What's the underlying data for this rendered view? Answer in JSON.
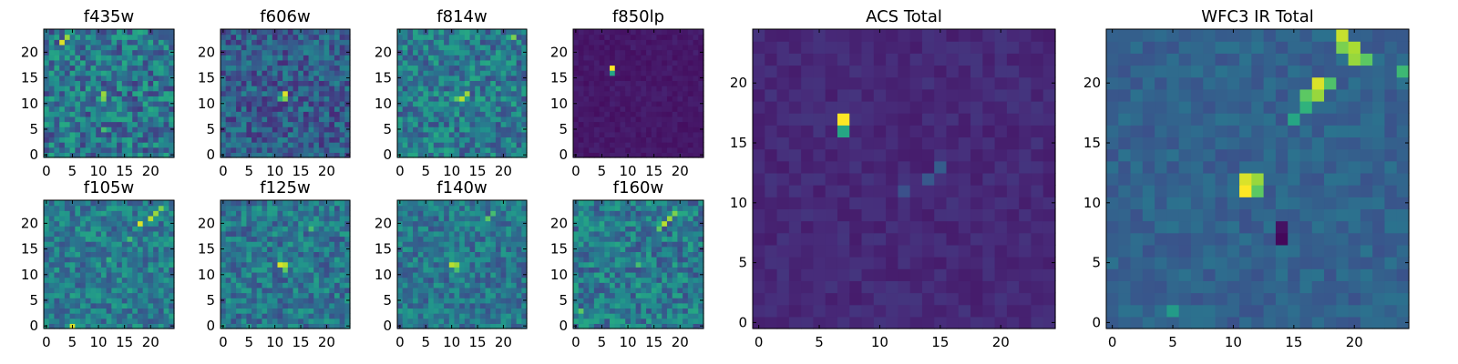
{
  "chart_data": [
    {
      "type": "heatmap",
      "title": "f435w",
      "grid_size": [
        25,
        25
      ],
      "xlim": [
        0,
        25
      ],
      "ylim": [
        0,
        25
      ],
      "xticks": [
        0,
        5,
        10,
        15,
        20
      ],
      "yticks": [
        0,
        5,
        10,
        15,
        20
      ],
      "grid": false,
      "colormap": "viridis",
      "value_range": [
        0,
        1
      ],
      "background_level": 0.4,
      "noise_amplitude": 0.45,
      "features": [
        {
          "x": 11,
          "y": 12,
          "value": 0.85
        },
        {
          "x": 11,
          "y": 11,
          "value": 0.8
        },
        {
          "x": 4,
          "y": 23,
          "value": 0.85
        },
        {
          "x": 3,
          "y": 22,
          "value": 0.95
        },
        {
          "x": 11,
          "y": 5,
          "value": 0.7
        }
      ]
    },
    {
      "type": "heatmap",
      "title": "f606w",
      "grid_size": [
        25,
        25
      ],
      "xlim": [
        0,
        25
      ],
      "ylim": [
        0,
        25
      ],
      "xticks": [
        0,
        5,
        10,
        15,
        20
      ],
      "yticks": [
        0,
        5,
        10,
        15,
        20
      ],
      "grid": false,
      "colormap": "viridis",
      "value_range": [
        0,
        1
      ],
      "background_level": 0.3,
      "noise_amplitude": 0.35,
      "features": [
        {
          "x": 12,
          "y": 12,
          "value": 0.95
        },
        {
          "x": 12,
          "y": 11,
          "value": 0.8
        },
        {
          "x": 11,
          "y": 11,
          "value": 0.65
        }
      ]
    },
    {
      "type": "heatmap",
      "title": "f814w",
      "grid_size": [
        25,
        25
      ],
      "xlim": [
        0,
        25
      ],
      "ylim": [
        0,
        25
      ],
      "xticks": [
        0,
        5,
        10,
        15,
        20
      ],
      "yticks": [
        0,
        5,
        10,
        15,
        20
      ],
      "grid": false,
      "colormap": "viridis",
      "value_range": [
        0,
        1
      ],
      "background_level": 0.42,
      "noise_amplitude": 0.4,
      "features": [
        {
          "x": 12,
          "y": 11,
          "value": 0.9
        },
        {
          "x": 13,
          "y": 12,
          "value": 0.85
        },
        {
          "x": 11,
          "y": 11,
          "value": 0.75
        },
        {
          "x": 22,
          "y": 23,
          "value": 0.8
        }
      ]
    },
    {
      "type": "heatmap",
      "title": "f850lp",
      "grid_size": [
        25,
        25
      ],
      "xlim": [
        0,
        25
      ],
      "ylim": [
        0,
        25
      ],
      "xticks": [
        0,
        5,
        10,
        15,
        20
      ],
      "yticks": [
        0,
        5,
        10,
        15,
        20
      ],
      "grid": false,
      "colormap": "viridis",
      "value_range": [
        0,
        1
      ],
      "background_level": 0.07,
      "noise_amplitude": 0.06,
      "features": [
        {
          "x": 7,
          "y": 17,
          "value": 1.0
        },
        {
          "x": 7,
          "y": 16,
          "value": 0.6
        }
      ]
    },
    {
      "type": "heatmap",
      "title": "f105w",
      "grid_size": [
        25,
        25
      ],
      "xlim": [
        0,
        25
      ],
      "ylim": [
        0,
        25
      ],
      "xticks": [
        0,
        5,
        10,
        15,
        20
      ],
      "yticks": [
        0,
        5,
        10,
        15,
        20
      ],
      "grid": false,
      "colormap": "viridis",
      "value_range": [
        0,
        1
      ],
      "background_level": 0.42,
      "noise_amplitude": 0.35,
      "features": [
        {
          "x": 18,
          "y": 20,
          "value": 0.95
        },
        {
          "x": 20,
          "y": 21,
          "value": 0.9
        },
        {
          "x": 21,
          "y": 22,
          "value": 0.85
        },
        {
          "x": 22,
          "y": 23,
          "value": 0.8
        },
        {
          "x": 16,
          "y": 17,
          "value": 0.7
        },
        {
          "x": 12,
          "y": 13,
          "value": 0.65
        },
        {
          "x": 5,
          "y": 0,
          "value": 0.95
        }
      ]
    },
    {
      "type": "heatmap",
      "title": "f125w",
      "grid_size": [
        25,
        25
      ],
      "xlim": [
        0,
        25
      ],
      "ylim": [
        0,
        25
      ],
      "xticks": [
        0,
        5,
        10,
        15,
        20
      ],
      "yticks": [
        0,
        5,
        10,
        15,
        20
      ],
      "grid": false,
      "colormap": "viridis",
      "value_range": [
        0,
        1
      ],
      "background_level": 0.4,
      "noise_amplitude": 0.35,
      "features": [
        {
          "x": 11,
          "y": 12,
          "value": 0.95
        },
        {
          "x": 12,
          "y": 12,
          "value": 0.9
        },
        {
          "x": 12,
          "y": 11,
          "value": 0.75
        },
        {
          "x": 17,
          "y": 19,
          "value": 0.7
        }
      ]
    },
    {
      "type": "heatmap",
      "title": "f140w",
      "grid_size": [
        25,
        25
      ],
      "xlim": [
        0,
        25
      ],
      "ylim": [
        0,
        25
      ],
      "xticks": [
        0,
        5,
        10,
        15,
        20
      ],
      "yticks": [
        0,
        5,
        10,
        15,
        20
      ],
      "grid": false,
      "colormap": "viridis",
      "value_range": [
        0,
        1
      ],
      "background_level": 0.4,
      "noise_amplitude": 0.32,
      "features": [
        {
          "x": 10,
          "y": 12,
          "value": 0.9
        },
        {
          "x": 11,
          "y": 12,
          "value": 0.85
        },
        {
          "x": 11,
          "y": 11,
          "value": 0.7
        },
        {
          "x": 17,
          "y": 21,
          "value": 0.75
        },
        {
          "x": 18,
          "y": 22,
          "value": 0.7
        }
      ]
    },
    {
      "type": "heatmap",
      "title": "f160w",
      "grid_size": [
        25,
        25
      ],
      "xlim": [
        0,
        25
      ],
      "ylim": [
        0,
        25
      ],
      "xticks": [
        0,
        5,
        10,
        15,
        20
      ],
      "yticks": [
        0,
        5,
        10,
        15,
        20
      ],
      "grid": false,
      "colormap": "viridis",
      "value_range": [
        0,
        1
      ],
      "background_level": 0.42,
      "noise_amplitude": 0.38,
      "features": [
        {
          "x": 17,
          "y": 20,
          "value": 0.9
        },
        {
          "x": 18,
          "y": 21,
          "value": 0.85
        },
        {
          "x": 19,
          "y": 22,
          "value": 0.8
        },
        {
          "x": 16,
          "y": 19,
          "value": 0.75
        },
        {
          "x": 12,
          "y": 12,
          "value": 0.7
        },
        {
          "x": 1,
          "y": 3,
          "value": 0.75
        }
      ]
    },
    {
      "type": "heatmap",
      "title": "ACS Total",
      "grid_size": [
        25,
        25
      ],
      "xlim": [
        0,
        25
      ],
      "ylim": [
        0,
        25
      ],
      "xticks": [
        0,
        5,
        10,
        15,
        20
      ],
      "yticks": [
        0,
        5,
        10,
        15,
        20
      ],
      "grid": false,
      "colormap": "viridis",
      "value_range": [
        0,
        1
      ],
      "background_level": 0.12,
      "noise_amplitude": 0.08,
      "features": [
        {
          "x": 7,
          "y": 17,
          "value": 1.0
        },
        {
          "x": 7,
          "y": 16,
          "value": 0.6
        },
        {
          "x": 15,
          "y": 13,
          "value": 0.3
        },
        {
          "x": 14,
          "y": 12,
          "value": 0.28
        },
        {
          "x": 12,
          "y": 11,
          "value": 0.25
        }
      ]
    },
    {
      "type": "heatmap",
      "title": "WFC3 IR Total",
      "grid_size": [
        25,
        25
      ],
      "xlim": [
        0,
        25
      ],
      "ylim": [
        0,
        25
      ],
      "xticks": [
        0,
        5,
        10,
        15,
        20
      ],
      "yticks": [
        0,
        5,
        10,
        15,
        20
      ],
      "grid": false,
      "colormap": "viridis",
      "value_range": [
        0,
        1
      ],
      "background_level": 0.32,
      "noise_amplitude": 0.14,
      "features": [
        {
          "x": 11,
          "y": 11,
          "value": 1.0
        },
        {
          "x": 11,
          "y": 12,
          "value": 0.95
        },
        {
          "x": 12,
          "y": 12,
          "value": 0.85
        },
        {
          "x": 12,
          "y": 11,
          "value": 0.75
        },
        {
          "x": 17,
          "y": 20,
          "value": 0.95
        },
        {
          "x": 17,
          "y": 19,
          "value": 0.85
        },
        {
          "x": 16,
          "y": 19,
          "value": 0.75
        },
        {
          "x": 18,
          "y": 20,
          "value": 0.72
        },
        {
          "x": 16,
          "y": 18,
          "value": 0.65
        },
        {
          "x": 19,
          "y": 24,
          "value": 0.92
        },
        {
          "x": 20,
          "y": 23,
          "value": 0.88
        },
        {
          "x": 20,
          "y": 22,
          "value": 0.85
        },
        {
          "x": 19,
          "y": 23,
          "value": 0.8
        },
        {
          "x": 21,
          "y": 22,
          "value": 0.75
        },
        {
          "x": 24,
          "y": 21,
          "value": 0.68
        },
        {
          "x": 15,
          "y": 17,
          "value": 0.6
        },
        {
          "x": 14,
          "y": 7,
          "value": 0.02
        },
        {
          "x": 14,
          "y": 8,
          "value": 0.05
        },
        {
          "x": 5,
          "y": 1,
          "value": 0.55
        }
      ]
    }
  ]
}
